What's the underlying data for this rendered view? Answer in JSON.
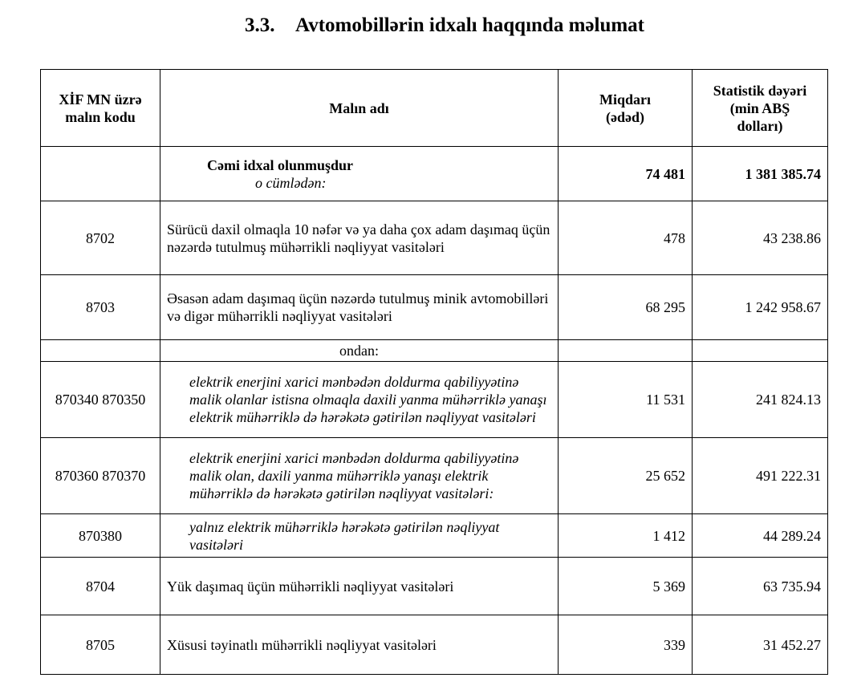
{
  "title": {
    "number": "3.3.",
    "text": "Avtomobillərin idxalı haqqında məlumat"
  },
  "table": {
    "header": [
      "XİF MN üzrə\nmalın kodu",
      "Malın adı",
      "Miqdarı\n(ədəd)",
      "Statistik dəyəri\n(min ABŞ\ndolları)"
    ],
    "rows": [
      {
        "name": "Cəmi  idxal  olunmuşdur",
        "note": "o cümlədən:",
        "quantity": "74 481",
        "value": "1 381 385.74"
      },
      {
        "code": "8702",
        "name": "Sürücü daxil olmaqla 10 nəfər və ya daha çox adam daşımaq üçün nəzərdə tutulmuş mühərrikli nəqliyyat vasitələri",
        "quantity": "478",
        "value": "43 238.86"
      },
      {
        "code": "8703",
        "name": "Əsasən adam daşımaq üçün nəzərdə tutulmuş minik avtomobilləri və digər mühərrikli nəqliyyat vasitələri",
        "quantity": "68 295",
        "value": "1 242 958.67"
      },
      {
        "name": "ondan:"
      },
      {
        "code": "870340 870350",
        "name": "elektrik enerjini xarici mənbədən doldurma qabiliyyətinə malik olanlar istisna olmaqla daxili yanma mühərriklə yanaşı elektrik mühərriklə də hərəkətə gətirilən nəqliyyat vasitələri",
        "quantity": "11 531",
        "value": "241 824.13"
      },
      {
        "code": "870360 870370",
        "name": "elektrik enerjini xarici mənbədən doldurma qabiliyyətinə malik olan, daxili yanma mühərriklə yanaşı elektrik mühərriklə də hərəkətə gətirilən nəqliyyat vasitələri:",
        "quantity": "25 652",
        "value": "491 222.31"
      },
      {
        "code": "870380",
        "name": "yalnız elektrik mühərriklə hərəkətə gətirilən nəqliyyat vasitələri",
        "quantity": "1 412",
        "value": "44 289.24"
      },
      {
        "code": "8704",
        "name": "Yük daşımaq üçün mühərrikli nəqliyyat vasitələri",
        "quantity": "5 369",
        "value": "63 735.94"
      },
      {
        "code": "8705",
        "name": "Xüsusi təyinatlı mühərrikli nəqliyyat vasitələri",
        "quantity": "339",
        "value": "31 452.27"
      }
    ]
  }
}
